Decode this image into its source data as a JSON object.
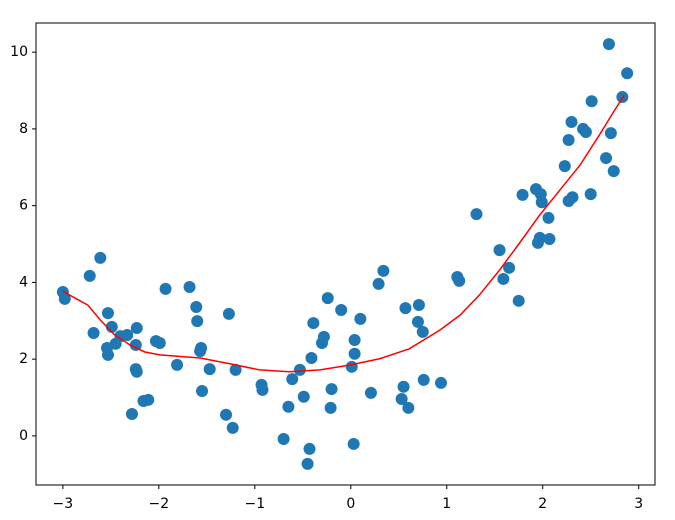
{
  "chart_data": {
    "type": "scatter",
    "xlim": [
      -3.28,
      3.17
    ],
    "ylim": [
      -1.28,
      10.76
    ],
    "xticks": [
      {
        "value": -3,
        "label": "−3"
      },
      {
        "value": -2,
        "label": "−2"
      },
      {
        "value": -1,
        "label": "−1"
      },
      0,
      1,
      2,
      3
    ],
    "yticks": [
      0,
      2,
      4,
      6,
      8,
      10
    ],
    "series": [
      {
        "type": "scatter",
        "color": "#1f77b4",
        "x": [
          -3.0,
          -2.98,
          -2.72,
          -2.61,
          -2.68,
          -2.53,
          -2.54,
          -2.53,
          -2.49,
          -2.45,
          -2.4,
          -2.33,
          -2.23,
          -2.24,
          -2.24,
          -2.23,
          -2.28,
          -2.16,
          -2.11,
          -1.93,
          -2.03,
          -1.99,
          -1.81,
          -1.68,
          -1.61,
          -1.6,
          -1.57,
          -1.56,
          -1.55,
          -1.47,
          -1.3,
          -1.27,
          -1.23,
          -1.2,
          -0.93,
          -0.92,
          -0.7,
          -0.65,
          -0.61,
          -0.53,
          -0.49,
          -0.45,
          -0.43,
          -0.41,
          -0.39,
          -0.3,
          -0.28,
          -0.24,
          -0.2,
          -0.21,
          -0.1,
          0.01,
          0.04,
          0.04,
          0.03,
          0.1,
          0.21,
          0.29,
          0.34,
          0.53,
          0.55,
          0.57,
          0.6,
          0.7,
          0.71,
          0.75,
          0.76,
          0.94,
          1.11,
          1.13,
          1.31,
          1.55,
          1.59,
          1.65,
          1.75,
          1.79,
          1.93,
          1.95,
          1.97,
          1.98,
          1.99,
          2.06,
          2.07,
          2.23,
          2.27,
          2.27,
          2.3,
          2.31,
          2.42,
          2.45,
          2.5,
          2.51,
          2.66,
          2.69,
          2.71,
          2.74,
          2.83,
          2.88
        ],
        "values": [
          3.75,
          3.57,
          4.17,
          4.64,
          2.68,
          3.2,
          2.29,
          2.11,
          2.84,
          2.4,
          2.6,
          2.63,
          2.81,
          2.37,
          1.74,
          1.67,
          0.57,
          0.91,
          0.94,
          3.83,
          2.47,
          2.42,
          1.85,
          3.88,
          3.36,
          2.99,
          2.21,
          2.29,
          1.17,
          1.74,
          0.55,
          3.18,
          0.21,
          1.72,
          1.33,
          1.2,
          -0.08,
          0.76,
          1.48,
          1.72,
          1.02,
          -0.73,
          -0.34,
          2.03,
          2.94,
          2.42,
          2.58,
          3.59,
          1.22,
          0.73,
          3.28,
          1.8,
          2.5,
          2.14,
          -0.21,
          3.05,
          1.12,
          3.96,
          4.3,
          0.96,
          1.28,
          3.33,
          0.73,
          2.97,
          3.41,
          2.71,
          1.46,
          1.38,
          4.14,
          4.04,
          5.78,
          4.84,
          4.09,
          4.38,
          3.52,
          6.28,
          6.43,
          5.03,
          5.16,
          6.3,
          6.09,
          5.68,
          5.13,
          7.03,
          7.71,
          6.12,
          8.18,
          6.22,
          8.0,
          7.92,
          6.3,
          8.72,
          7.24,
          10.21,
          7.89,
          6.9,
          8.83,
          9.45
        ]
      },
      {
        "type": "line",
        "color": "#ff0000",
        "x": [
          -3.0,
          -2.93,
          -2.74,
          -2.61,
          -2.46,
          -2.3,
          -2.15,
          -1.99,
          -1.57,
          -1.26,
          -0.95,
          -0.64,
          -0.32,
          0.0,
          0.3,
          0.61,
          0.93,
          1.14,
          1.34,
          1.55,
          1.76,
          1.97,
          2.18,
          2.39,
          2.59,
          2.75,
          2.85
        ],
        "values": [
          3.78,
          3.67,
          3.41,
          3.02,
          2.63,
          2.37,
          2.19,
          2.11,
          2.03,
          1.88,
          1.72,
          1.67,
          1.72,
          1.85,
          2.01,
          2.27,
          2.76,
          3.15,
          3.67,
          4.32,
          5.03,
          5.76,
          6.41,
          7.06,
          7.84,
          8.49,
          8.88
        ]
      }
    ]
  }
}
